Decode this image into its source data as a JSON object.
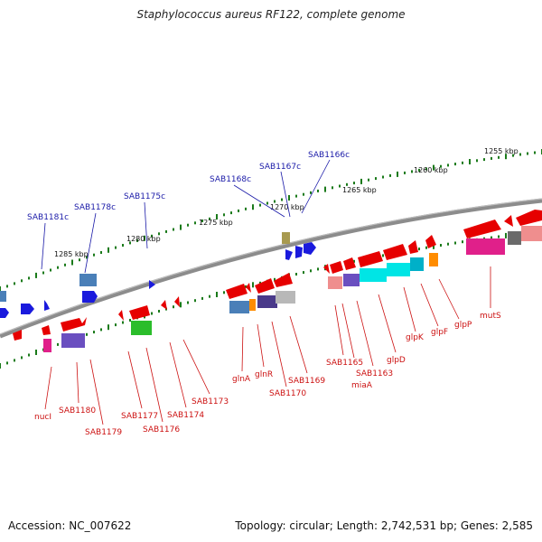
{
  "title": "Staphylococcus aureus RF122, complete genome",
  "footer": {
    "accession": "Accession: NC_007622",
    "topology": "Topology: circular; Length: 2,742,531 bp; Genes: 2,585"
  },
  "colors": {
    "backbone": "#8c8c8c",
    "tick": "#1a7a1a",
    "forward_label": "#1a1aa8",
    "reverse_label": "#cc1111",
    "gene_red": "#e60000",
    "gene_blue": "#1a1add"
  },
  "kbp_marks": [
    {
      "text": "1285 kbp"
    },
    {
      "text": "1280 kbp"
    },
    {
      "text": "1275 kbp"
    },
    {
      "text": "1270 kbp"
    },
    {
      "text": "1265 kbp"
    },
    {
      "text": "1260 kbp"
    },
    {
      "text": "1255 kbp"
    }
  ],
  "forward_labels": [
    {
      "text": "SAB1181c"
    },
    {
      "text": "SAB1178c"
    },
    {
      "text": "SAB1175c"
    },
    {
      "text": "SAB1168c"
    },
    {
      "text": "SAB1167c"
    },
    {
      "text": "SAB1166c"
    }
  ],
  "reverse_labels": [
    {
      "text": "nucI"
    },
    {
      "text": "SAB1180"
    },
    {
      "text": "SAB1179"
    },
    {
      "text": "SAB1177"
    },
    {
      "text": "SAB1176"
    },
    {
      "text": "SAB1174"
    },
    {
      "text": "SAB1173"
    },
    {
      "text": "glnA"
    },
    {
      "text": "glnR"
    },
    {
      "text": "SAB1170"
    },
    {
      "text": "SAB1169"
    },
    {
      "text": "SAB1165"
    },
    {
      "text": "miaA"
    },
    {
      "text": "SAB1163"
    },
    {
      "text": "glpD"
    },
    {
      "text": "glpK"
    },
    {
      "text": "glpF"
    },
    {
      "text": "glpP"
    },
    {
      "text": "mutS"
    }
  ]
}
